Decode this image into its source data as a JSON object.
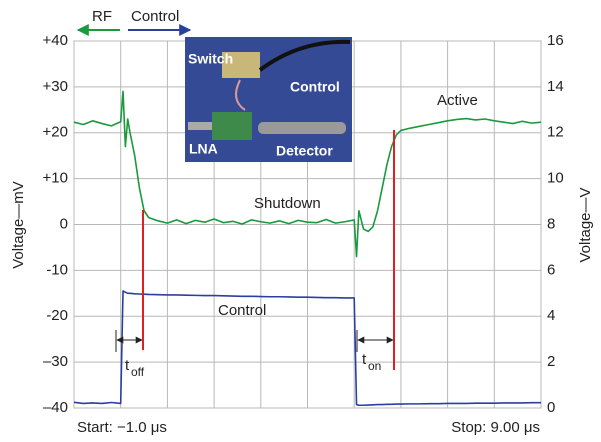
{
  "chart_data": {
    "type": "line",
    "y_label": "Voltage—mV",
    "y2_label": "Voltage—V",
    "start_label": "Start: −1.0 μs",
    "stop_label": "Stop: 9.00 μs",
    "annotations": {
      "shutdown": "Shutdown",
      "active": "Active",
      "control": "Control",
      "t_off": "t",
      "t_off_sub": "off",
      "t_on": "t",
      "t_on_sub": "on"
    },
    "inset_labels": {
      "switch": "Switch",
      "control": "Control",
      "lna": "LNA",
      "detector": "Detector"
    },
    "xlim": [
      -1,
      9
    ],
    "xticks": [
      -1,
      0,
      1,
      2,
      3,
      4,
      5,
      6,
      7,
      8,
      9
    ],
    "ylim": [
      -40,
      40
    ],
    "yticks": [
      {
        "value": 40,
        "label": "+40"
      },
      {
        "value": 30,
        "label": "+30"
      },
      {
        "value": 20,
        "label": "+20"
      },
      {
        "value": 10,
        "label": "+10"
      },
      0,
      -10,
      -20,
      {
        "value": -30,
        "label": "–30"
      },
      {
        "value": -40,
        "label": "–40"
      }
    ],
    "y2lim": [
      0,
      16
    ],
    "y2ticks": [
      0,
      2,
      4,
      6,
      8,
      10,
      12,
      14,
      16
    ],
    "grid": true,
    "x": [
      -1,
      -0.8,
      -0.6,
      -0.4,
      -0.2,
      0,
      0.05,
      0.1,
      0.15,
      0.2,
      0.3,
      0.4,
      0.5,
      0.6,
      0.8,
      1,
      1.2,
      1.4,
      1.6,
      1.8,
      2,
      2.2,
      2.4,
      2.6,
      2.8,
      3,
      3.2,
      3.4,
      3.6,
      3.8,
      4,
      4.2,
      4.4,
      4.6,
      4.8,
      5,
      5.05,
      5.1,
      5.2,
      5.3,
      5.4,
      5.5,
      5.6,
      5.7,
      5.8,
      5.9,
      6,
      6.2,
      6.4,
      6.6,
      6.8,
      7,
      7.2,
      7.4,
      7.6,
      7.8,
      8,
      8.2,
      8.4,
      8.6,
      8.8,
      9
    ],
    "series": [
      {
        "name": "RF",
        "color": "#1a9a3c",
        "axis": "y",
        "values": [
          22.3,
          21.8,
          22.6,
          22.0,
          21.5,
          22.4,
          29,
          17,
          23,
          20,
          15,
          8,
          3,
          1.5,
          0.8,
          0.3,
          1.0,
          0.2,
          0.9,
          0.5,
          1.2,
          0.4,
          0.7,
          0.1,
          1.0,
          0.6,
          0.3,
          0.8,
          0.2,
          0.9,
          0.5,
          0.4,
          1.1,
          0.3,
          0.6,
          1,
          -7,
          3,
          -1,
          -1.5,
          -0.5,
          3,
          8,
          13,
          17,
          19.5,
          20.5,
          21.0,
          21.4,
          21.8,
          22.2,
          22.6,
          22.9,
          23.1,
          22.8,
          23.0,
          22.6,
          22.3,
          22.0,
          22.5,
          22.1,
          22.3
        ]
      },
      {
        "name": "Control",
        "color": "#2b3fa0",
        "axis": "y2",
        "values": [
          0.25,
          0.2,
          0.22,
          0.2,
          0.24,
          0.2,
          5.1,
          5.05,
          5.0,
          5.0,
          4.98,
          4.97,
          4.96,
          4.95,
          4.94,
          4.93,
          4.93,
          4.92,
          4.91,
          4.9,
          4.9,
          4.89,
          4.88,
          4.87,
          4.87,
          4.86,
          4.85,
          4.85,
          4.84,
          4.83,
          4.83,
          4.82,
          4.81,
          4.81,
          4.8,
          4.8,
          0.15,
          0.12,
          0.12,
          0.13,
          0.14,
          0.15,
          0.15,
          0.16,
          0.16,
          0.17,
          0.17,
          0.18,
          0.18,
          0.19,
          0.19,
          0.2,
          0.2,
          0.2,
          0.21,
          0.21,
          0.21,
          0.22,
          0.22,
          0.22,
          0.23,
          0.23
        ]
      }
    ]
  }
}
